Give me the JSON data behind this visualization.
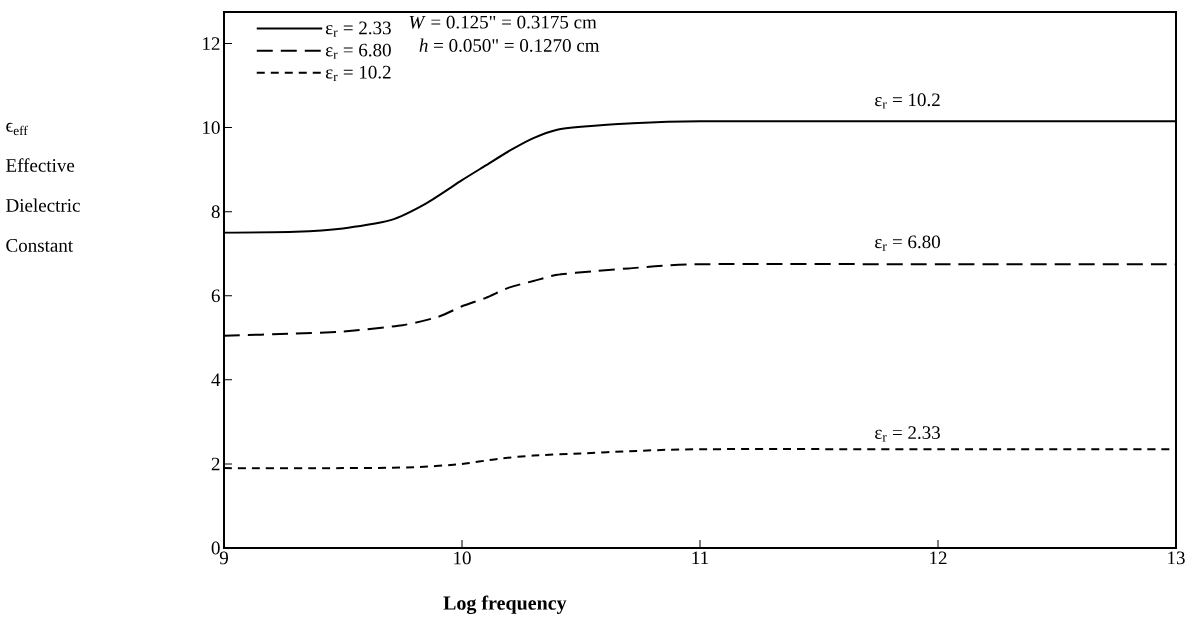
{
  "chart_data": {
    "type": "line",
    "xlabel": "**Log frequency**",
    "ylabel": "ϵ$_{eff}$ Effective Dielectric Constant",
    "xlim": [
      9,
      13
    ],
    "ylim": [
      0,
      12.75
    ],
    "xticks": [
      9,
      10,
      11,
      12,
      13
    ],
    "yticks": [
      0,
      2,
      4,
      6,
      8,
      10,
      12
    ],
    "legend": "top left",
    "series": [
      {
        "name": "ε$_{r}$ = 2.33",
        "color": "#000000",
        "line_style": "solid",
        "x": [
          9,
          9.3,
          9.5,
          9.7,
          9.85,
          10,
          10.1,
          10.2,
          10.3,
          10.4,
          10.5,
          10.7,
          11,
          12,
          13
        ],
        "values": [
          7.5,
          7.52,
          7.6,
          7.8,
          8.2,
          8.75,
          9.1,
          9.45,
          9.75,
          9.95,
          10.02,
          10.1,
          10.15,
          10.15,
          10.15
        ]
      },
      {
        "name": "ε$_{r}$ = 6.80",
        "color": "#000000",
        "line_style": "dashed",
        "x": [
          9,
          9.3,
          9.5,
          9.75,
          9.9,
          10,
          10.1,
          10.2,
          10.3,
          10.4,
          10.55,
          10.7,
          11,
          12,
          13
        ],
        "values": [
          5.05,
          5.1,
          5.15,
          5.3,
          5.5,
          5.75,
          5.95,
          6.2,
          6.35,
          6.5,
          6.58,
          6.65,
          6.75,
          6.75,
          6.75
        ]
      },
      {
        "name": "ε$_{r}$ = 10.2",
        "color": "#000000",
        "line_style": "dashed",
        "x": [
          9,
          9.5,
          9.8,
          10,
          10.15,
          10.3,
          10.5,
          10.7,
          11,
          12,
          13
        ],
        "values": [
          1.9,
          1.9,
          1.92,
          2.0,
          2.12,
          2.2,
          2.25,
          2.3,
          2.35,
          2.35,
          2.35
        ]
      }
    ],
    "annotations": [
      "*W* = 0.125\" = 0.3175 cm",
      "*h* = 0.050\" = 0.1270 cm",
      "ε$_{r}$ = 10.2",
      "ε$_{r}$ = 6.80",
      "ε$_{r}$ = 2.33"
    ]
  }
}
